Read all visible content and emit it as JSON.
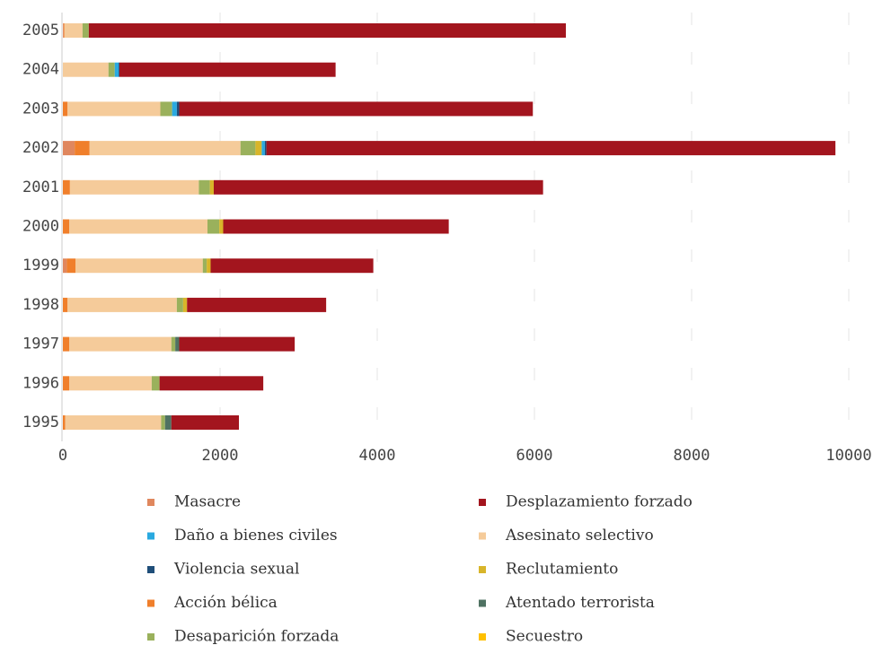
{
  "chart_data": {
    "type": "bar",
    "orientation": "horizontal",
    "stacked": true,
    "categories": [
      "2005",
      "2004",
      "2003",
      "2002",
      "2001",
      "2000",
      "1999",
      "1998",
      "1997",
      "1996",
      "1995"
    ],
    "series": [
      {
        "name": "Masacre",
        "color": "#e0875e",
        "values": [
          10,
          0,
          0,
          150,
          0,
          0,
          50,
          0,
          0,
          0,
          0
        ]
      },
      {
        "name": "Acción bélica",
        "color": "#f07f2b",
        "values": [
          10,
          0,
          60,
          190,
          90,
          80,
          110,
          60,
          80,
          80,
          30
        ]
      },
      {
        "name": "Asesinato selectivo",
        "color": "#f5cb9a",
        "values": [
          230,
          580,
          1180,
          1920,
          1640,
          1760,
          1620,
          1390,
          1300,
          1050,
          1220
        ]
      },
      {
        "name": "Desaparición forzada",
        "color": "#9ab15c",
        "values": [
          80,
          80,
          150,
          190,
          140,
          150,
          50,
          80,
          50,
          100,
          50
        ]
      },
      {
        "name": "Atentado terrorista",
        "color": "#4f7262",
        "values": [
          0,
          0,
          0,
          0,
          0,
          0,
          0,
          0,
          50,
          0,
          80
        ]
      },
      {
        "name": "Reclutamiento",
        "color": "#d8b52a",
        "values": [
          0,
          0,
          0,
          80,
          50,
          50,
          50,
          50,
          0,
          0,
          0
        ]
      },
      {
        "name": "Secuestro",
        "color": "#ffc000",
        "values": [
          0,
          0,
          0,
          0,
          0,
          0,
          0,
          0,
          0,
          0,
          0
        ]
      },
      {
        "name": "Daño a bienes civiles",
        "color": "#29a9e0",
        "values": [
          0,
          50,
          60,
          40,
          0,
          0,
          0,
          0,
          0,
          0,
          0
        ]
      },
      {
        "name": "Violencia sexual",
        "color": "#1f4e79",
        "values": [
          0,
          10,
          30,
          20,
          0,
          0,
          0,
          0,
          0,
          0,
          0
        ]
      },
      {
        "name": "Desplazamiento forzado",
        "color": "#a3151e",
        "values": [
          6070,
          2750,
          4500,
          7240,
          4190,
          2870,
          2070,
          1770,
          1470,
          1320,
          860
        ]
      }
    ],
    "xlim": [
      0,
      10000
    ],
    "xticks": [
      0,
      2000,
      4000,
      6000,
      8000,
      10000
    ],
    "grid": true
  }
}
